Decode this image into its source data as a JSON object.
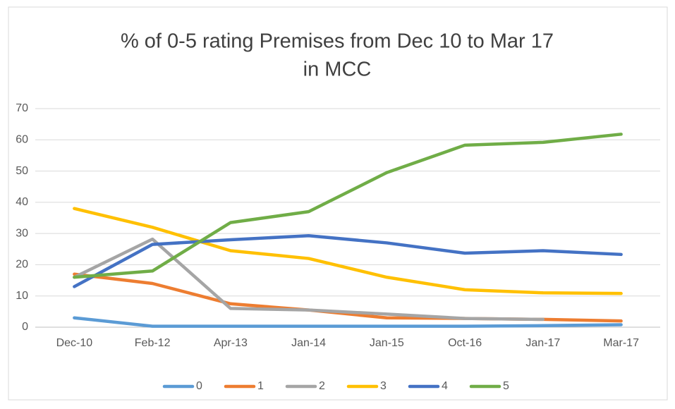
{
  "chart_data": {
    "type": "line",
    "title": [
      "% of 0-5 rating Premises from Dec 10 to Mar 17",
      "in MCC"
    ],
    "categories": [
      "Dec-10",
      "Feb-12",
      "Apr-13",
      "Jan-14",
      "Jan-15",
      "Oct-16",
      "Jan-17",
      "Mar-17"
    ],
    "series": [
      {
        "name": "0",
        "color": "#5b9bd5",
        "values": [
          3,
          0.3,
          0.3,
          0.3,
          0.3,
          0.3,
          0.5,
          0.8
        ]
      },
      {
        "name": "1",
        "color": "#ed7d31",
        "values": [
          17,
          14,
          7.5,
          5.5,
          3,
          2.8,
          2.5,
          2
        ]
      },
      {
        "name": "2",
        "color": "#a5a5a5",
        "values": [
          16,
          28.2,
          6,
          5.5,
          4.2,
          2.8,
          2.5,
          null
        ]
      },
      {
        "name": "3",
        "color": "#ffc000",
        "values": [
          38,
          32,
          24.5,
          22,
          16,
          12,
          11,
          10.8
        ]
      },
      {
        "name": "4",
        "color": "#4472c4",
        "values": [
          13,
          26.5,
          28,
          29.3,
          27,
          23.7,
          24.5,
          23.3
        ]
      },
      {
        "name": "5",
        "color": "#70ad47",
        "values": [
          16,
          18,
          33.5,
          37,
          49.5,
          58.3,
          59.2,
          61.8
        ]
      }
    ],
    "ylim": [
      0,
      70
    ],
    "yticks": [
      0,
      10,
      20,
      30,
      40,
      50,
      60,
      70
    ],
    "grid": true,
    "legend": "bottom"
  }
}
